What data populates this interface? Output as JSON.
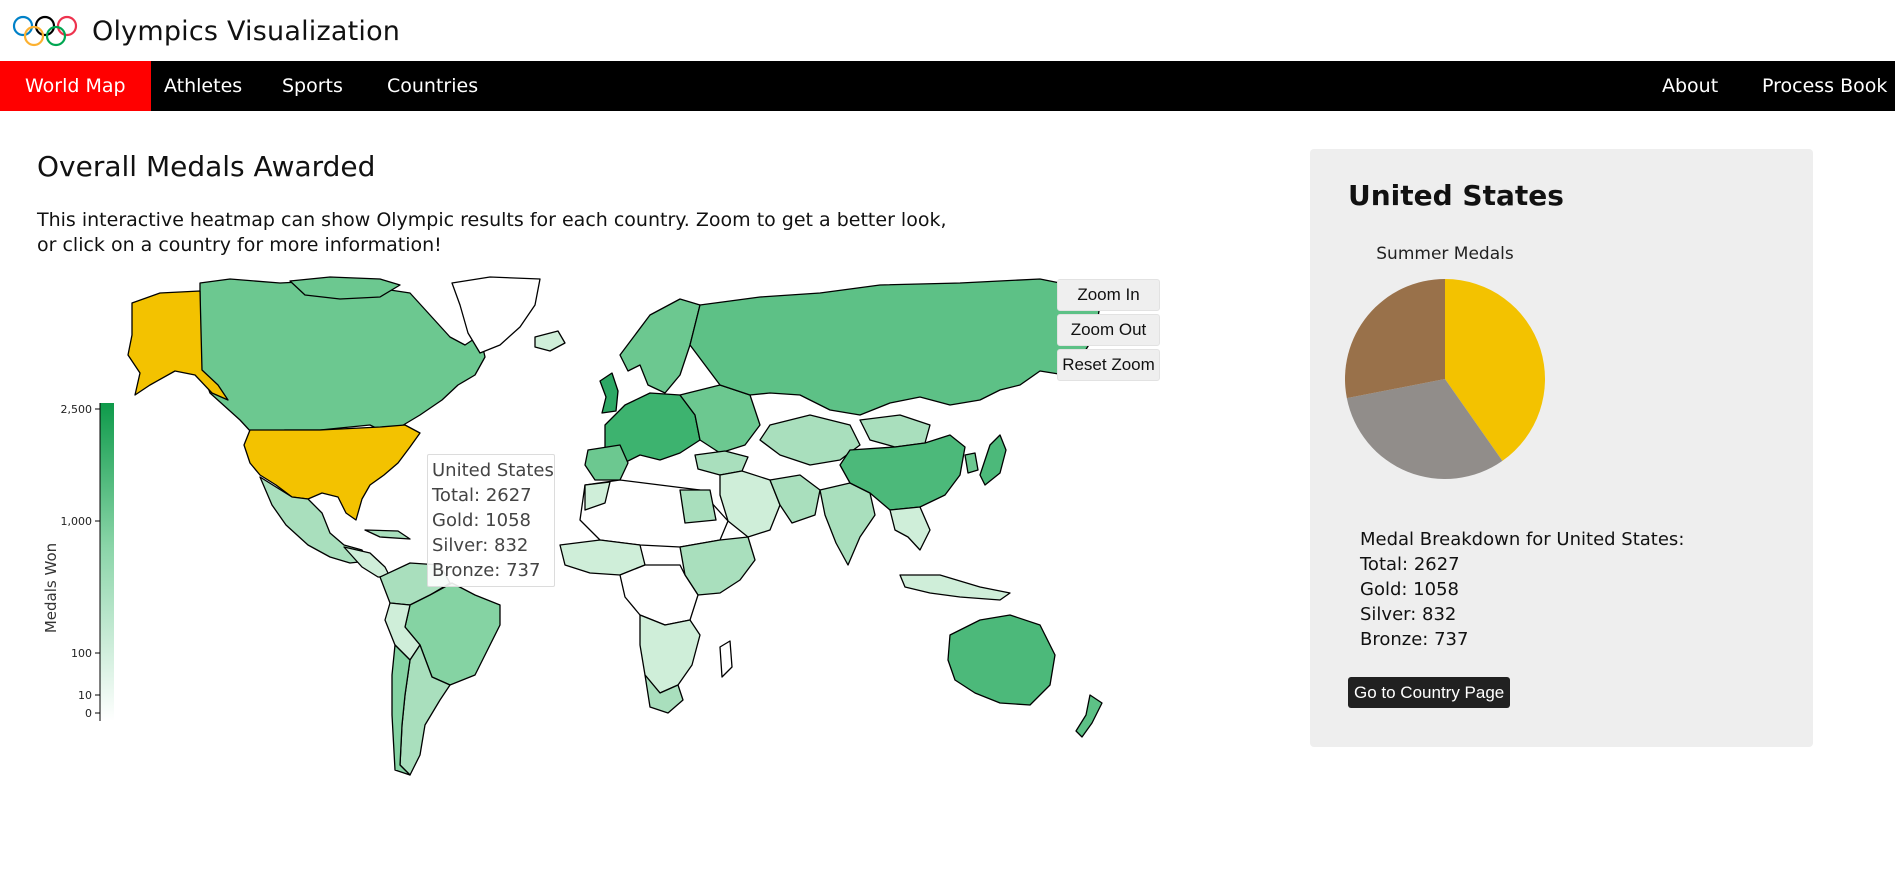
{
  "app": {
    "title": "Olympics Visualization",
    "logo_icon": "olympic-rings-icon"
  },
  "nav": {
    "items": [
      {
        "label": "World Map",
        "active": true
      },
      {
        "label": "Athletes",
        "active": false
      },
      {
        "label": "Sports",
        "active": false
      },
      {
        "label": "Countries",
        "active": false
      }
    ],
    "right_items": [
      {
        "label": "About"
      },
      {
        "label": "Process Book"
      }
    ]
  },
  "main": {
    "title": "Overall Medals Awarded",
    "intro": "This interactive heatmap can show Olympic results for each country. Zoom to get a better look, or click on a country for more information!",
    "zoom": {
      "in_label": "Zoom In",
      "out_label": "Zoom Out",
      "reset_label": "Reset Zoom"
    },
    "legend": {
      "title": "Medals Won",
      "ticks": [
        "2,500",
        "1,000",
        "100",
        "10",
        "0"
      ],
      "color_low": "#ffffff",
      "color_high": "#0e9a4a"
    },
    "selected_color": "#f3c200",
    "tooltip": {
      "country": "United States",
      "total": "Total: 2627",
      "gold": "Gold: 1058",
      "silver": "Silver: 832",
      "bronze": "Bronze: 737"
    }
  },
  "panel": {
    "country": "United States",
    "chart_title": "Summer Medals",
    "breakdown_title": "Medal Breakdown for United States:",
    "total": "Total: 2627",
    "gold": "Gold: 1058",
    "silver": "Silver: 832",
    "bronze": "Bronze: 737",
    "button_label": "Go to Country Page"
  },
  "chart_data": {
    "type": "pie",
    "title": "Summer Medals",
    "categories": [
      "Gold",
      "Silver",
      "Bronze"
    ],
    "values": [
      1058,
      832,
      737
    ],
    "colors": [
      "#f3c200",
      "#918d8a",
      "#99714a"
    ]
  }
}
